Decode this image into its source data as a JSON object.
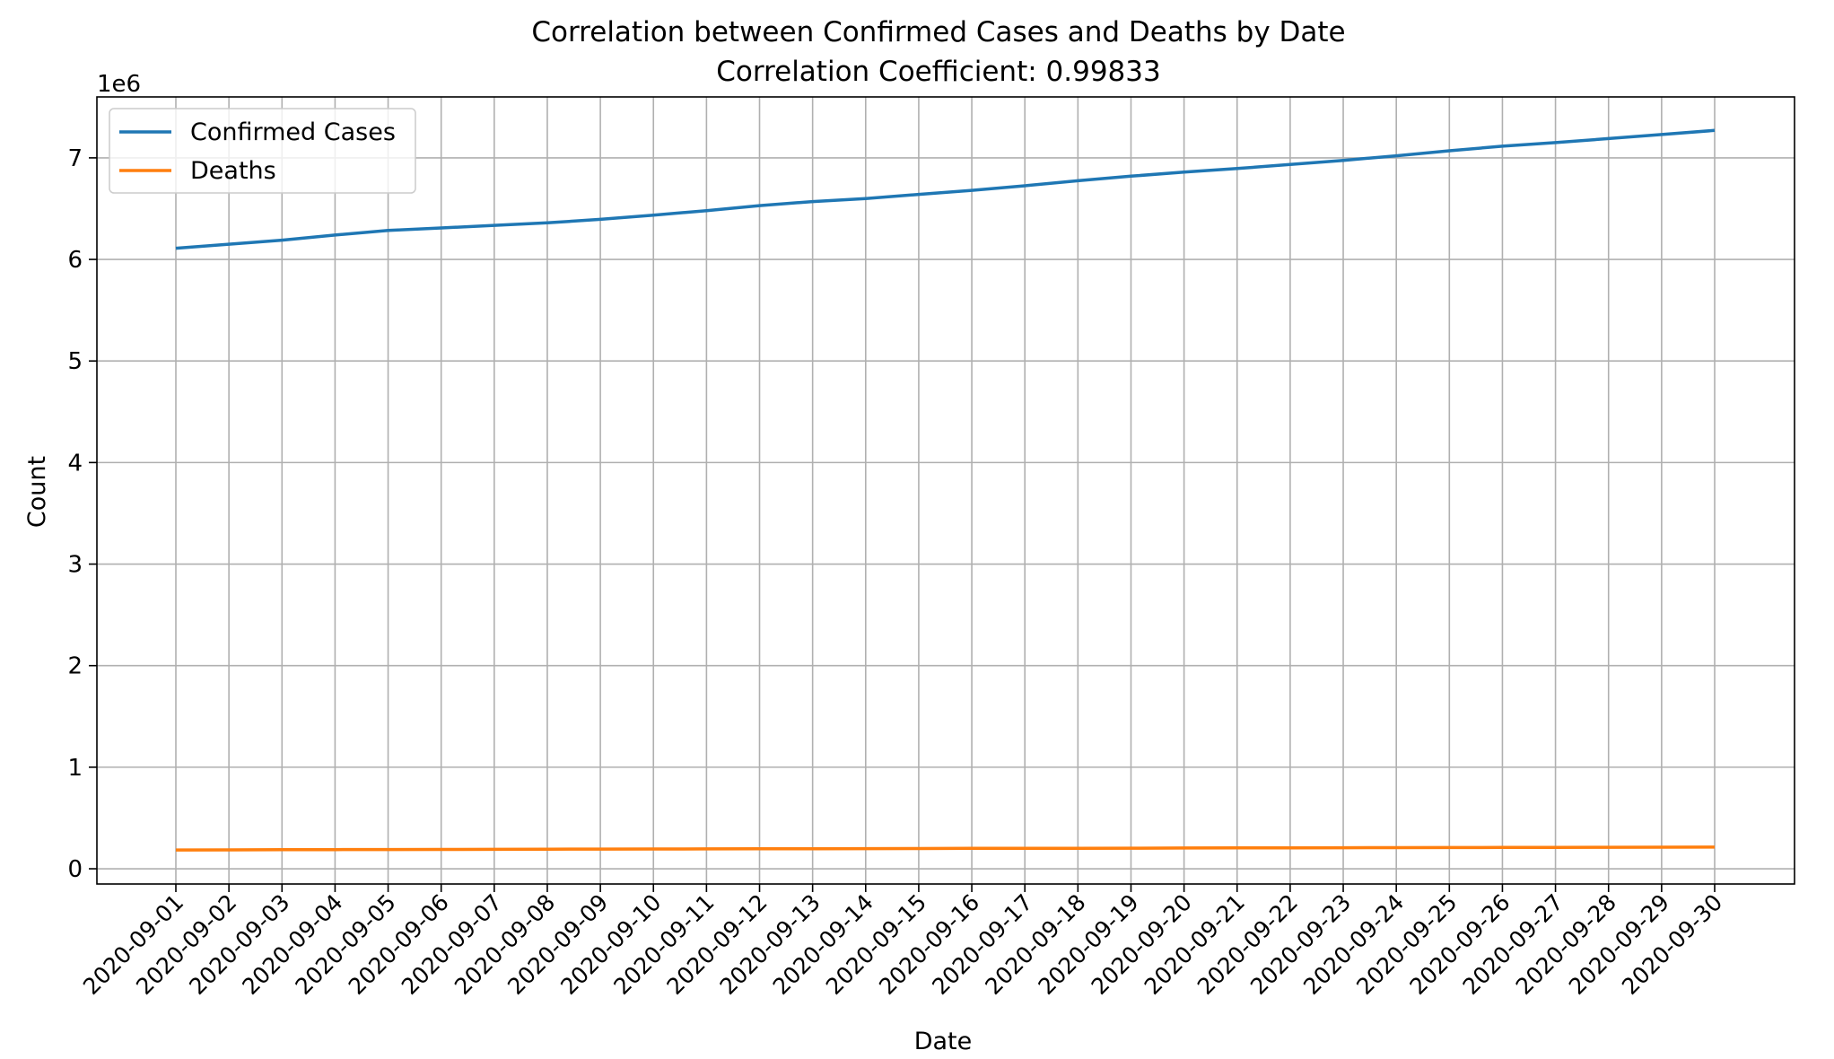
{
  "chart_data": {
    "type": "line",
    "title": "Correlation between Confirmed Cases and Deaths by Date",
    "subtitle": "Correlation Coefficient: 0.99833",
    "xlabel": "Date",
    "ylabel": "Count",
    "y_offset_label": "1e6",
    "ylim": [
      -150000,
      7600000
    ],
    "yticks": [
      0,
      1,
      2,
      3,
      4,
      5,
      6,
      7
    ],
    "grid": true,
    "legend_position": "top-left",
    "x": [
      "2020-09-01",
      "2020-09-02",
      "2020-09-03",
      "2020-09-04",
      "2020-09-05",
      "2020-09-06",
      "2020-09-07",
      "2020-09-08",
      "2020-09-09",
      "2020-09-10",
      "2020-09-11",
      "2020-09-12",
      "2020-09-13",
      "2020-09-14",
      "2020-09-15",
      "2020-09-16",
      "2020-09-17",
      "2020-09-18",
      "2020-09-19",
      "2020-09-20",
      "2020-09-21",
      "2020-09-22",
      "2020-09-23",
      "2020-09-24",
      "2020-09-25",
      "2020-09-26",
      "2020-09-27",
      "2020-09-28",
      "2020-09-29",
      "2020-09-30"
    ],
    "series": [
      {
        "name": "Confirmed Cases",
        "color": "#1f77b4",
        "values": [
          6110000,
          6150000,
          6190000,
          6240000,
          6285000,
          6310000,
          6335000,
          6360000,
          6395000,
          6435000,
          6480000,
          6530000,
          6570000,
          6600000,
          6640000,
          6680000,
          6725000,
          6775000,
          6820000,
          6860000,
          6895000,
          6935000,
          6975000,
          7020000,
          7070000,
          7115000,
          7150000,
          7190000,
          7230000,
          7270000
        ]
      },
      {
        "name": "Deaths",
        "color": "#ff7f0e",
        "values": [
          185000,
          186000,
          187500,
          188500,
          189500,
          190500,
          191500,
          192500,
          193500,
          194500,
          195500,
          196500,
          197500,
          198500,
          199500,
          200500,
          201000,
          202000,
          203000,
          204000,
          205000,
          206000,
          207000,
          208000,
          209000,
          209500,
          210000,
          211000,
          212000,
          213000
        ]
      }
    ]
  }
}
